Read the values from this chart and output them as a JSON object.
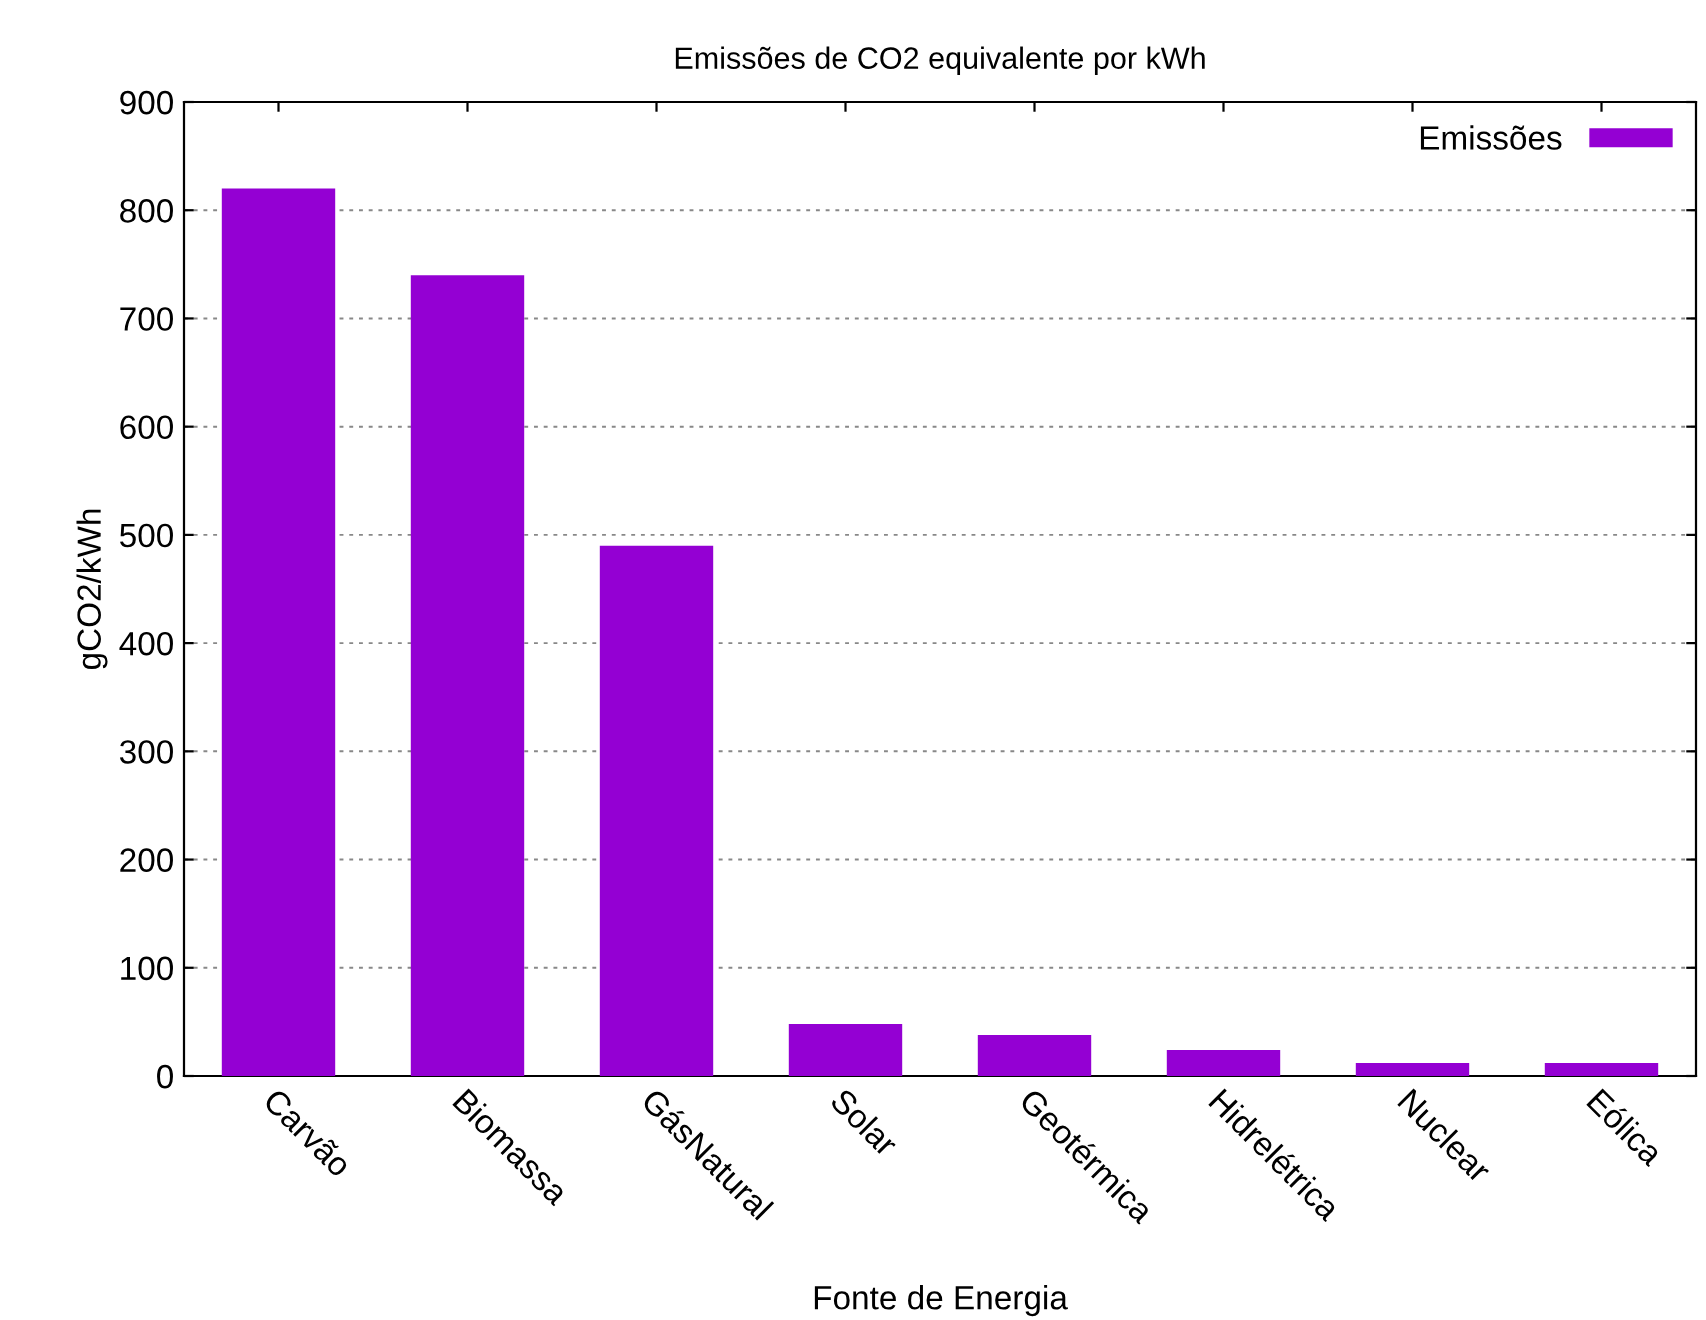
{
  "chart_data": {
    "type": "bar",
    "title": "Emissões de CO2 equivalente por kWh",
    "xlabel": "Fonte de Energia",
    "ylabel": "gCO2/kWh",
    "categories": [
      "Carvão",
      "Biomassa",
      "GásNatural",
      "Solar",
      "Geotérmica",
      "Hidrelétrica",
      "Nuclear",
      "Eólica"
    ],
    "series": [
      {
        "name": "Emissões",
        "color": "#9400d3",
        "values": [
          820,
          740,
          490,
          48,
          38,
          24,
          12,
          12
        ]
      }
    ],
    "ylim": [
      0,
      900
    ],
    "yticks": [
      0,
      100,
      200,
      300,
      400,
      500,
      600,
      700,
      800,
      900
    ],
    "grid": "y",
    "legend": "top right"
  }
}
